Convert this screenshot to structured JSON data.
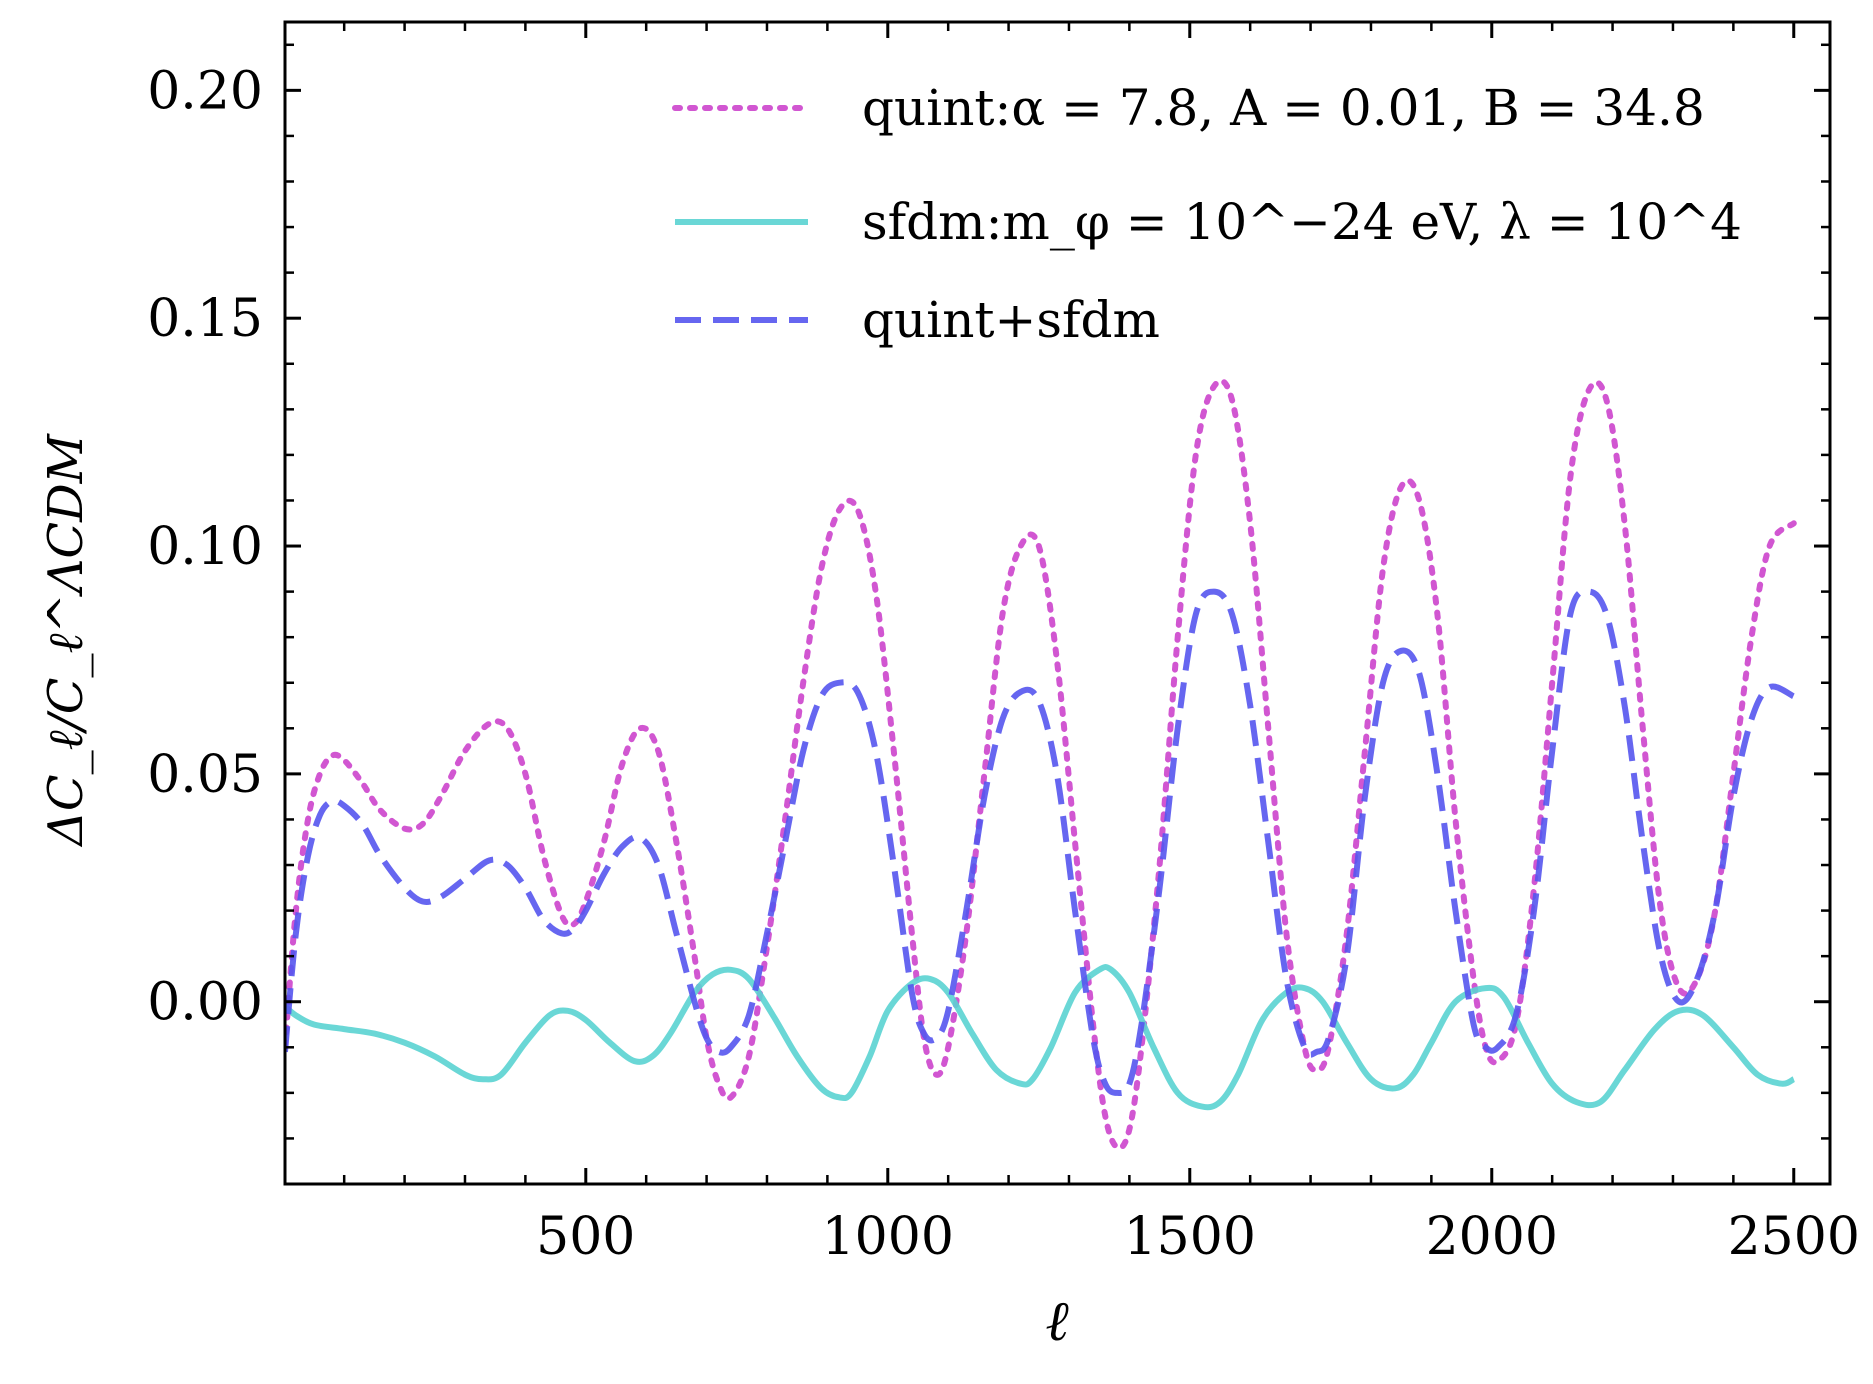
{
  "chart_data": {
    "type": "line",
    "xlabel": "ℓ",
    "ylabel": "ΔC_ℓ/C_ℓ^ΛCDM",
    "xlim": [
      2,
      2560
    ],
    "ylim": [
      -0.04,
      0.215
    ],
    "xticks": [
      500,
      1000,
      1500,
      2000,
      2500
    ],
    "yticks": [
      0.0,
      0.05,
      0.1,
      0.15,
      0.2
    ],
    "xtick_labels": [
      "500",
      "1000",
      "1500",
      "2000",
      "2500"
    ],
    "ytick_labels": [
      "0.00",
      "0.05",
      "0.10",
      "0.15",
      "0.20"
    ],
    "legend_position": "top-right",
    "grid": false,
    "series": [
      {
        "name": "quint:α = 7.8, A = 0.01, B = 34.8",
        "color": "#cc44cc",
        "style": "dotted",
        "x": [
          2,
          20,
          40,
          60,
          80,
          100,
          130,
          160,
          200,
          230,
          260,
          300,
          340,
          370,
          400,
          430,
          460,
          480,
          500,
          530,
          560,
          590,
          620,
          650,
          680,
          700,
          720,
          740,
          770,
          800,
          830,
          860,
          890,
          920,
          950,
          980,
          1010,
          1040,
          1060,
          1080,
          1100,
          1130,
          1160,
          1190,
          1220,
          1250,
          1280,
          1310,
          1340,
          1360,
          1380,
          1400,
          1420,
          1450,
          1480,
          1510,
          1540,
          1570,
          1600,
          1630,
          1660,
          1690,
          1710,
          1730,
          1760,
          1790,
          1820,
          1850,
          1880,
          1910,
          1940,
          1970,
          1990,
          2010,
          2040,
          2070,
          2100,
          2130,
          2160,
          2190,
          2220,
          2250,
          2280,
          2310,
          2340,
          2370,
          2400,
          2430,
          2460,
          2500
        ],
        "y": [
          -0.01,
          0.02,
          0.04,
          0.05,
          0.054,
          0.053,
          0.048,
          0.042,
          0.038,
          0.039,
          0.045,
          0.055,
          0.061,
          0.06,
          0.05,
          0.032,
          0.019,
          0.017,
          0.022,
          0.035,
          0.052,
          0.06,
          0.055,
          0.035,
          0.01,
          -0.008,
          -0.018,
          -0.021,
          -0.012,
          0.012,
          0.04,
          0.07,
          0.095,
          0.108,
          0.108,
          0.09,
          0.055,
          0.015,
          -0.008,
          -0.016,
          -0.01,
          0.015,
          0.05,
          0.085,
          0.1,
          0.1,
          0.075,
          0.035,
          -0.005,
          -0.025,
          -0.032,
          -0.028,
          -0.01,
          0.03,
          0.08,
          0.12,
          0.135,
          0.132,
          0.105,
          0.06,
          0.015,
          -0.01,
          -0.015,
          -0.01,
          0.015,
          0.055,
          0.095,
          0.113,
          0.11,
          0.085,
          0.04,
          0.005,
          -0.01,
          -0.013,
          -0.005,
          0.025,
          0.07,
          0.115,
          0.134,
          0.132,
          0.105,
          0.06,
          0.02,
          0.003,
          0.005,
          0.02,
          0.05,
          0.08,
          0.1,
          0.105
        ]
      },
      {
        "name": "sfdm:m_φ = 10^−24 eV, λ = 10^4",
        "color": "#5ad3d1",
        "style": "solid",
        "x": [
          2,
          20,
          50,
          100,
          150,
          200,
          250,
          300,
          330,
          360,
          400,
          440,
          470,
          500,
          540,
          580,
          610,
          640,
          680,
          710,
          740,
          770,
          810,
          850,
          890,
          920,
          940,
          970,
          1000,
          1040,
          1070,
          1100,
          1140,
          1180,
          1220,
          1240,
          1270,
          1310,
          1350,
          1370,
          1400,
          1440,
          1480,
          1520,
          1550,
          1580,
          1620,
          1660,
          1690,
          1720,
          1760,
          1800,
          1840,
          1870,
          1900,
          1940,
          1990,
          2020,
          2060,
          2100,
          2140,
          2180,
          2220,
          2270,
          2310,
          2350,
          2400,
          2440,
          2480,
          2500
        ],
        "y": [
          -0.001,
          -0.003,
          -0.005,
          -0.006,
          -0.007,
          -0.009,
          -0.012,
          -0.016,
          -0.017,
          -0.016,
          -0.009,
          -0.003,
          -0.002,
          -0.004,
          -0.009,
          -0.013,
          -0.012,
          -0.007,
          0.002,
          0.006,
          0.007,
          0.005,
          -0.003,
          -0.012,
          -0.019,
          -0.021,
          -0.02,
          -0.012,
          -0.002,
          0.004,
          0.005,
          0.002,
          -0.007,
          -0.015,
          -0.018,
          -0.017,
          -0.01,
          0.002,
          0.007,
          0.007,
          0.002,
          -0.01,
          -0.02,
          -0.023,
          -0.022,
          -0.016,
          -0.004,
          0.002,
          0.003,
          0.0,
          -0.009,
          -0.017,
          -0.019,
          -0.016,
          -0.009,
          0.0,
          0.003,
          0.001,
          -0.009,
          -0.018,
          -0.022,
          -0.022,
          -0.015,
          -0.006,
          -0.002,
          -0.003,
          -0.01,
          -0.016,
          -0.018,
          -0.017
        ]
      },
      {
        "name": "quint+sfdm",
        "color": "#5555ee",
        "style": "dashed",
        "x": [
          2,
          20,
          40,
          60,
          80,
          100,
          130,
          160,
          200,
          230,
          260,
          300,
          340,
          370,
          400,
          430,
          460,
          480,
          500,
          530,
          560,
          590,
          620,
          650,
          680,
          700,
          720,
          740,
          770,
          800,
          830,
          860,
          890,
          920,
          950,
          980,
          1010,
          1040,
          1060,
          1080,
          1100,
          1130,
          1160,
          1190,
          1220,
          1250,
          1280,
          1310,
          1340,
          1360,
          1380,
          1400,
          1420,
          1450,
          1480,
          1510,
          1540,
          1570,
          1600,
          1630,
          1660,
          1690,
          1710,
          1730,
          1760,
          1790,
          1820,
          1850,
          1880,
          1910,
          1940,
          1970,
          1990,
          2010,
          2040,
          2070,
          2100,
          2130,
          2160,
          2190,
          2220,
          2250,
          2280,
          2310,
          2340,
          2370,
          2400,
          2430,
          2460,
          2500
        ],
        "y": [
          -0.011,
          0.015,
          0.032,
          0.041,
          0.044,
          0.043,
          0.039,
          0.032,
          0.025,
          0.022,
          0.023,
          0.027,
          0.031,
          0.03,
          0.025,
          0.018,
          0.015,
          0.016,
          0.02,
          0.028,
          0.034,
          0.036,
          0.03,
          0.015,
          0.0,
          -0.008,
          -0.011,
          -0.01,
          -0.003,
          0.015,
          0.035,
          0.055,
          0.067,
          0.07,
          0.068,
          0.055,
          0.03,
          0.002,
          -0.007,
          -0.008,
          -0.002,
          0.02,
          0.045,
          0.062,
          0.068,
          0.066,
          0.05,
          0.02,
          -0.008,
          -0.018,
          -0.02,
          -0.018,
          -0.005,
          0.025,
          0.06,
          0.085,
          0.09,
          0.085,
          0.065,
          0.035,
          0.005,
          -0.01,
          -0.011,
          -0.008,
          0.01,
          0.045,
          0.07,
          0.077,
          0.072,
          0.05,
          0.02,
          -0.005,
          -0.01,
          -0.01,
          -0.003,
          0.02,
          0.055,
          0.085,
          0.09,
          0.085,
          0.065,
          0.035,
          0.01,
          0.0,
          0.005,
          0.02,
          0.045,
          0.062,
          0.069,
          0.067
        ]
      }
    ]
  }
}
